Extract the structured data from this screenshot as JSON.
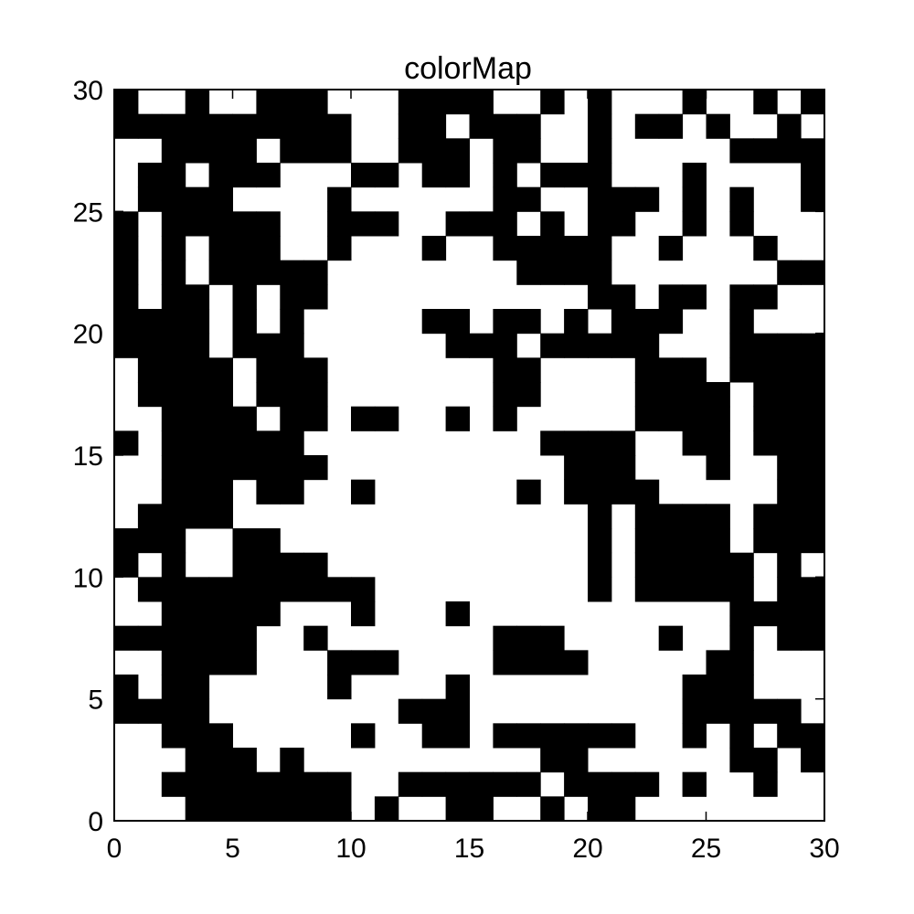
{
  "chart_data": {
    "type": "heatmap",
    "title": "colorMap",
    "xlabel": "",
    "ylabel": "",
    "xlim": [
      0,
      30
    ],
    "ylim": [
      0,
      30
    ],
    "xticks": [
      0,
      5,
      10,
      15,
      20,
      25,
      30
    ],
    "yticks": [
      0,
      5,
      10,
      15,
      20,
      25,
      30
    ],
    "colormap": {
      "0": "#ffffff",
      "1": "#000000"
    },
    "grid_rows_top_to_bottom": [
      "100100111000111100101000100101",
      "111111111100110111001011010010",
      "001111011100111011001000001111",
      "011011100011011010111000100001",
      "011110000100000011001110101001",
      "101111100111001110101100101000",
      "101011100100010011111001000100",
      "101011111000000001111000000011",
      "101101011000000000001101101100",
      "111101010000011011010111001000",
      "111101110000001110111110001111",
      "011110111000000011000011101111",
      "011110111000000011000011110111",
      "001111011011001010000011110111",
      "101111110000000000111100110111",
      "001111111000000000011100010011",
      "001110110010000001011110000011",
      "011110000000000000001011110111",
      "111001100000000000001011110111",
      "101001111000000000001011111010",
      "011111111110000000001011111011",
      "001111100010001000000000001111",
      "111111001000000011100001001011",
      "001111000111000011110000011000",
      "101100000100001000000000111000",
      "111100000000111000000000111110",
      "001110000010011011111100101011",
      "000111010000000000110000001101",
      "001111111100111111011110100100",
      "000111111101001100101100000000"
    ]
  }
}
